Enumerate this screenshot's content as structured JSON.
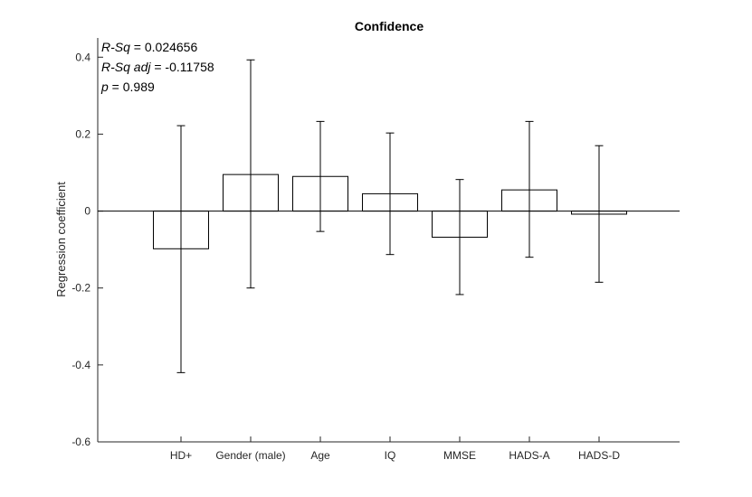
{
  "chart_data": {
    "type": "bar",
    "title": "Confidence",
    "xlabel": "",
    "ylabel": "Regression coefficient",
    "categories": [
      "HD+",
      "Gender (male)",
      "Age",
      "IQ",
      "MMSE",
      "HADS-A",
      "HADS-D"
    ],
    "values": [
      -0.098,
      0.095,
      0.09,
      0.045,
      -0.068,
      0.055,
      -0.008
    ],
    "error_low": [
      -0.42,
      -0.2,
      -0.053,
      -0.113,
      -0.217,
      -0.12,
      -0.185
    ],
    "error_high": [
      0.222,
      0.393,
      0.233,
      0.203,
      0.082,
      0.233,
      0.17
    ],
    "ylim": [
      -0.6,
      0.45
    ],
    "yticks": [
      -0.6,
      -0.4,
      -0.2,
      0,
      0.2,
      0.4
    ],
    "ytick_labels": [
      "-0.6",
      "-0.4",
      "-0.2",
      "0",
      "0.2",
      "0.4"
    ],
    "grid": false,
    "bar_color": "#ffffff",
    "bar_edge_color": "#000000",
    "annotations": [
      {
        "name": "R-Sq",
        "text": " = 0.024656"
      },
      {
        "name": "R-Sq adj",
        "text": " = -0.11758"
      },
      {
        "name": "p",
        "text": " = 0.989"
      }
    ]
  }
}
